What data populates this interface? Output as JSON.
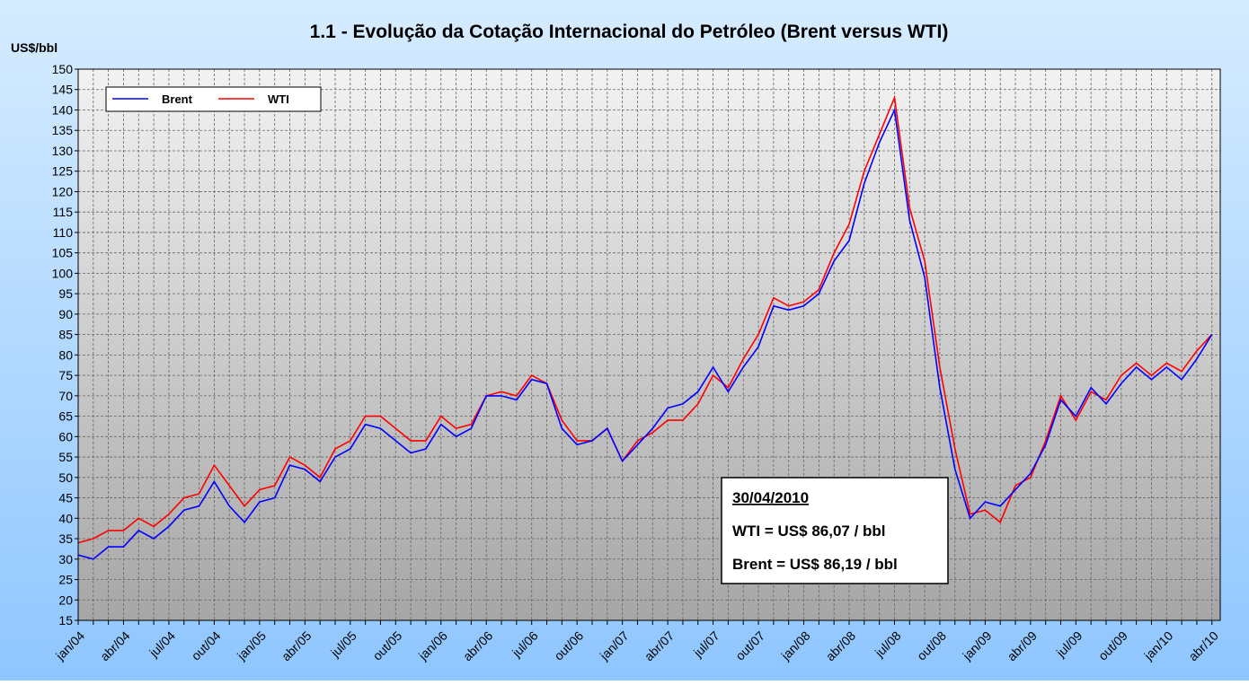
{
  "chart_data": {
    "type": "line",
    "title": "1.1 - Evolução da Cotação Internacional do Petróleo (Brent versus WTI)",
    "y_label": "US$/bbl",
    "x": [
      "jan/04",
      null,
      null,
      "abr/04",
      null,
      null,
      "jul/04",
      null,
      null,
      "out/04",
      null,
      null,
      "jan/05",
      null,
      null,
      "abr/05",
      null,
      null,
      "jul/05",
      null,
      null,
      "out/05",
      null,
      null,
      "jan/06",
      null,
      null,
      "abr/06",
      null,
      null,
      "jul/06",
      null,
      null,
      "out/06",
      null,
      null,
      "jan/07",
      null,
      null,
      "abr/07",
      null,
      null,
      "jul/07",
      null,
      null,
      "out/07",
      null,
      null,
      "jan/08",
      null,
      null,
      "abr/08",
      null,
      null,
      "jul/08",
      null,
      null,
      "out/08",
      null,
      null,
      "jan/09",
      null,
      null,
      "abr/09",
      null,
      null,
      "jul/09",
      null,
      null,
      "out/09",
      null,
      null,
      "jan/10",
      null,
      null,
      "abr/10"
    ],
    "series": [
      {
        "name": "Brent",
        "color": "#0000ff",
        "values": [
          31,
          30,
          33,
          33,
          37,
          35,
          38,
          42,
          43,
          49,
          43,
          39,
          44,
          45,
          53,
          52,
          49,
          55,
          57,
          63,
          62,
          59,
          56,
          57,
          63,
          60,
          62,
          70,
          70,
          69,
          74,
          73,
          62,
          58,
          59,
          62,
          54,
          58,
          62,
          67,
          68,
          71,
          77,
          71,
          77,
          82,
          92,
          91,
          92,
          95,
          103,
          108,
          122,
          132,
          140,
          113,
          99,
          72,
          52,
          40,
          44,
          43,
          47,
          51,
          58,
          69,
          65,
          72,
          68,
          73,
          77,
          74,
          77,
          74,
          79,
          85
        ]
      },
      {
        "name": "WTI",
        "color": "#ff0000",
        "values": [
          34,
          35,
          37,
          37,
          40,
          38,
          41,
          45,
          46,
          53,
          48,
          43,
          47,
          48,
          55,
          53,
          50,
          57,
          59,
          65,
          65,
          62,
          59,
          59,
          65,
          62,
          63,
          70,
          71,
          70,
          75,
          73,
          64,
          59,
          59,
          62,
          54,
          59,
          61,
          64,
          64,
          68,
          75,
          72,
          79,
          85,
          94,
          92,
          93,
          96,
          105,
          112,
          125,
          134,
          143,
          116,
          103,
          77,
          57,
          41,
          42,
          39,
          48,
          50,
          59,
          70,
          64,
          71,
          69,
          75,
          78,
          75,
          78,
          76,
          81,
          85
        ]
      }
    ],
    "ylim": [
      15,
      150
    ],
    "yticks": [
      15,
      20,
      25,
      30,
      35,
      40,
      45,
      50,
      55,
      60,
      65,
      70,
      75,
      80,
      85,
      90,
      95,
      100,
      105,
      110,
      115,
      120,
      125,
      130,
      135,
      140,
      145,
      150
    ],
    "grid": true,
    "legend": "top-left",
    "annotation": {
      "date": "30/04/2010",
      "wti": "WTI = US$ 86,07 / bbl",
      "brent": "Brent = US$ 86,19 / bbl"
    }
  }
}
